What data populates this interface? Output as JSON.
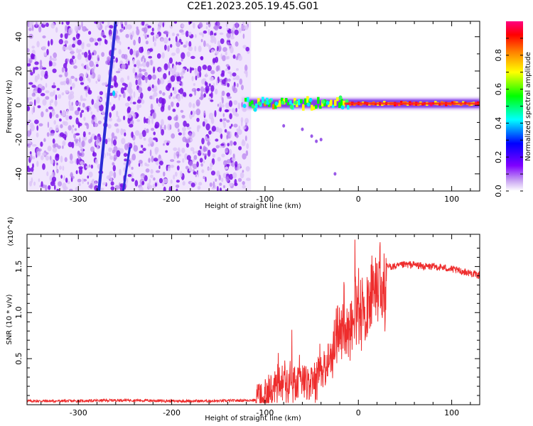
{
  "title": "C2E1.2023.205.19.45.G01",
  "chart_data": [
    {
      "type": "heatmap",
      "xlabel": "Height of straight line (km)",
      "ylabel": "Frequency (Hz)",
      "xlim": [
        -355,
        130
      ],
      "ylim": [
        -50,
        49
      ],
      "x_ticks": [
        -300,
        -200,
        -100,
        0,
        100
      ],
      "x_tick_labels": [
        "-300",
        "-200",
        "-100",
        "0",
        "100"
      ],
      "y_ticks": [
        -40,
        -20,
        0,
        20,
        40
      ],
      "y_tick_labels": [
        "-40",
        "-20",
        "0",
        "20",
        "40"
      ],
      "colorbar": {
        "label": "Normalized spectral amplitude",
        "range": [
          0,
          1
        ],
        "ticks": [
          0.0,
          0.2,
          0.4,
          0.6,
          0.8
        ],
        "tick_labels": [
          "0.0",
          "0.2",
          "0.4",
          "0.6",
          "0.8"
        ],
        "colors": [
          "#ffffff",
          "#c9a5f2",
          "#8000ff",
          "#0000ff",
          "#00ffff",
          "#00ff00",
          "#ffff00",
          "#ff8000",
          "#ff0000",
          "#ff0080"
        ]
      },
      "noise_region_x": [
        -355,
        -115
      ],
      "signal_band": {
        "x": [
          -125,
          130
        ],
        "center_hz": 1,
        "width_hz": 5
      },
      "streaks": [
        {
          "x_start": -278,
          "y_start": -50,
          "x_end": -260,
          "y_end": 49
        },
        {
          "x_start": -252,
          "y_start": -50,
          "x_end": -245,
          "y_end": -25
        }
      ],
      "grid": false
    },
    {
      "type": "line",
      "xlabel": "Height of straight line (km)",
      "ylabel": "SNR (10 * v/v)",
      "y_multiplier": "(x10^4)",
      "xlim": [
        -355,
        130
      ],
      "ylim": [
        0,
        1.85
      ],
      "x_ticks": [
        -300,
        -200,
        -100,
        0,
        100
      ],
      "x_tick_labels": [
        "-300",
        "-200",
        "-100",
        "0",
        "100"
      ],
      "y_ticks": [
        0.5,
        1.0,
        1.5
      ],
      "y_tick_labels": [
        "0.5",
        "1.0",
        "1.5"
      ],
      "color": "#ee2d2d",
      "series": [
        {
          "x": [
            -355,
            -300,
            -250,
            -200,
            -150,
            -110,
            -100,
            -90,
            -80,
            -70,
            -60,
            -50,
            -40,
            -30,
            -20,
            -15,
            -10,
            -5,
            0,
            5,
            10,
            20,
            30,
            40,
            50,
            60,
            70,
            80,
            90,
            100,
            110,
            120,
            130
          ],
          "values": [
            0.04,
            0.04,
            0.05,
            0.04,
            0.04,
            0.05,
            0.12,
            0.22,
            0.3,
            0.3,
            0.35,
            0.3,
            0.45,
            0.6,
            0.95,
            1.1,
            0.9,
            1.2,
            1.25,
            1.1,
            1.35,
            1.45,
            1.5,
            1.5,
            1.52,
            1.52,
            1.5,
            1.5,
            1.49,
            1.47,
            1.45,
            1.43,
            1.4
          ]
        }
      ],
      "grid": false
    }
  ]
}
